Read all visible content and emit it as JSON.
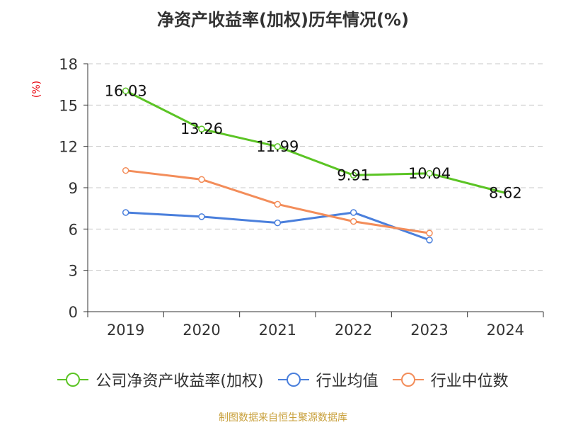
{
  "chart_data": {
    "type": "line",
    "title": "净资产收益率(加权)历年情况(%)",
    "ylabel": "(%)",
    "xlabel": "",
    "categories": [
      "2019",
      "2020",
      "2021",
      "2022",
      "2023",
      "2024"
    ],
    "ylim": [
      0,
      18
    ],
    "yticks": [
      0,
      3,
      6,
      9,
      12,
      15,
      18
    ],
    "grid": true,
    "legend_position": "bottom",
    "series": [
      {
        "name": "公司净资产收益率(加权)",
        "color": "#5bc424",
        "values": [
          16.03,
          13.26,
          11.99,
          9.91,
          10.04,
          8.62
        ],
        "labels": [
          "16.03",
          "13.26",
          "11.99",
          "9.91",
          "10.04",
          "8.62"
        ],
        "markers": [
          true,
          true,
          true,
          true,
          true,
          false
        ]
      },
      {
        "name": "行业均值",
        "color": "#4a7fdc",
        "values": [
          7.2,
          6.9,
          6.45,
          7.2,
          5.2,
          null
        ],
        "markers": [
          true,
          true,
          true,
          true,
          true,
          false
        ]
      },
      {
        "name": "行业中位数",
        "color": "#f38d5a",
        "values": [
          10.25,
          9.6,
          7.8,
          6.55,
          5.7,
          null
        ],
        "markers": [
          true,
          true,
          true,
          true,
          true,
          false
        ]
      }
    ]
  },
  "source": "制图数据来自恒生聚源数据库"
}
